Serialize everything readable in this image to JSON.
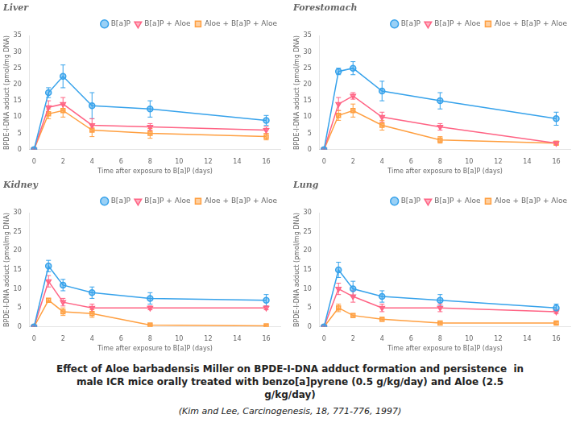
{
  "title": [
    "Effect of Aloe barbadensis Miller on BPDE-I-DNA adduct formation and persistence  in",
    "male ICR mice orally treated with benzo[a]pyrene (0.5 g/kg/day) and Aloe (2.5",
    "g/kg/day)"
  ],
  "subtitle": "(Kim and Lee, Carcinogenesis, 18, 771-776, 1997)",
  "chart_data": [
    {
      "type": "line",
      "title": "Liver",
      "x_label": "Time after exposure to B[a]P (days)",
      "y_label": "BPDE-I-DNA adduct (pmol/mg DNA)",
      "x": [
        0,
        1,
        2,
        4,
        8,
        16
      ],
      "series": [
        {
          "name": "B[a]P",
          "marker": "circle",
          "values": [
            0,
            17.5,
            22.5,
            13.5,
            12.5,
            9
          ],
          "errors": [
            0,
            1.5,
            3.5,
            4,
            2.5,
            1.5
          ]
        },
        {
          "name": "B[a]P + Aloe",
          "marker": "triangle_down",
          "values": [
            0,
            13,
            14,
            7.5,
            7,
            6
          ],
          "errors": [
            0,
            2,
            2,
            2,
            1,
            1
          ]
        },
        {
          "name": "Aloe + B[a]P + Aloe",
          "marker": "square",
          "values": [
            0,
            11,
            12,
            6,
            5,
            4
          ],
          "errors": [
            0,
            1.5,
            2,
            2,
            1.5,
            1
          ]
        }
      ],
      "xlim": [
        -0.3,
        17
      ],
      "xticks": [
        0,
        2,
        4,
        6,
        8,
        10,
        12,
        14,
        16
      ],
      "ylim": [
        0,
        35
      ],
      "yticks": [
        0,
        5,
        10,
        15,
        20,
        25,
        30,
        35
      ],
      "grid": false,
      "legend": "upper right"
    },
    {
      "type": "line",
      "title": "Forestomach",
      "x_label": "Time after exposure to B[a]P (days)",
      "y_label": "BPDE-I-DNA adduct (pmol/mg DNA)",
      "x": [
        0,
        1,
        2,
        4,
        8,
        16
      ],
      "series": [
        {
          "name": "B[a]P",
          "marker": "circle",
          "values": [
            0,
            24,
            25,
            18,
            15,
            9.5
          ],
          "errors": [
            0,
            1,
            2,
            3,
            2.5,
            2
          ]
        },
        {
          "name": "B[a]P + Aloe",
          "marker": "triangle_down",
          "values": [
            0,
            14,
            16.5,
            10,
            7,
            2
          ],
          "errors": [
            0,
            2,
            1,
            1.5,
            1,
            0.5
          ]
        },
        {
          "name": "Aloe + B[a]P + Aloe",
          "marker": "square",
          "values": [
            0,
            10.5,
            12,
            7.5,
            3,
            2
          ],
          "errors": [
            0,
            1.5,
            2,
            1.5,
            1,
            0.5
          ]
        }
      ],
      "xlim": [
        -0.3,
        17
      ],
      "xticks": [
        0,
        2,
        4,
        6,
        8,
        10,
        12,
        14,
        16
      ],
      "ylim": [
        0,
        35
      ],
      "yticks": [
        0,
        5,
        10,
        15,
        20,
        25,
        30,
        35
      ],
      "grid": false,
      "legend": "upper right"
    },
    {
      "type": "line",
      "title": "Kidney",
      "x_label": "Time after exposure to B[a]P (days)",
      "y_label": "BPDE-I-DNA adduct (pmol/mg DNA)",
      "x": [
        0,
        1,
        2,
        4,
        8,
        16
      ],
      "series": [
        {
          "name": "B[a]P",
          "marker": "circle",
          "values": [
            0,
            16,
            11,
            9,
            7.5,
            7
          ],
          "errors": [
            0,
            1.5,
            1.5,
            1.5,
            1.5,
            1.5
          ]
        },
        {
          "name": "B[a]P + Aloe",
          "marker": "triangle_down",
          "values": [
            0,
            12,
            6.5,
            5,
            5,
            5
          ],
          "errors": [
            0,
            1.5,
            1,
            1,
            0.5,
            0.5
          ]
        },
        {
          "name": "Aloe + B[a]P + Aloe",
          "marker": "square",
          "values": [
            0,
            7,
            4,
            3.5,
            0.5,
            0.3
          ],
          "errors": [
            0,
            0.5,
            1,
            1,
            0.3,
            0.2
          ]
        }
      ],
      "xlim": [
        -0.3,
        17
      ],
      "xticks": [
        0,
        2,
        4,
        6,
        8,
        10,
        12,
        14,
        16
      ],
      "ylim": [
        0,
        30
      ],
      "yticks": [
        0,
        5,
        10,
        15,
        20,
        25,
        30
      ],
      "grid": false,
      "legend": "upper right"
    },
    {
      "type": "line",
      "title": "Lung",
      "x_label": "Time after exposure to B[a]P (days)",
      "y_label": "BPDE-I-DNA adduct (pmol/mg DNA)",
      "x": [
        0,
        1,
        2,
        4,
        8,
        16
      ],
      "series": [
        {
          "name": "B[a]P",
          "marker": "circle",
          "values": [
            0,
            15,
            10,
            8,
            7,
            5
          ],
          "errors": [
            0,
            2,
            2,
            1.5,
            1.5,
            1
          ]
        },
        {
          "name": "B[a]P + Aloe",
          "marker": "triangle_down",
          "values": [
            0,
            10,
            8,
            5,
            5,
            4
          ],
          "errors": [
            0,
            1.5,
            1.5,
            1,
            1,
            0.5
          ]
        },
        {
          "name": "Aloe + B[a]P + Aloe",
          "marker": "square",
          "values": [
            0,
            5,
            3,
            2,
            1,
            1
          ],
          "errors": [
            0,
            1,
            0.5,
            0.5,
            0.5,
            0.3
          ]
        }
      ],
      "xlim": [
        -0.3,
        17
      ],
      "xticks": [
        0,
        2,
        4,
        6,
        8,
        10,
        12,
        14,
        16
      ],
      "ylim": [
        0,
        30
      ],
      "yticks": [
        0,
        5,
        10,
        15,
        20,
        25,
        30
      ],
      "grid": false,
      "legend": "upper right"
    }
  ]
}
